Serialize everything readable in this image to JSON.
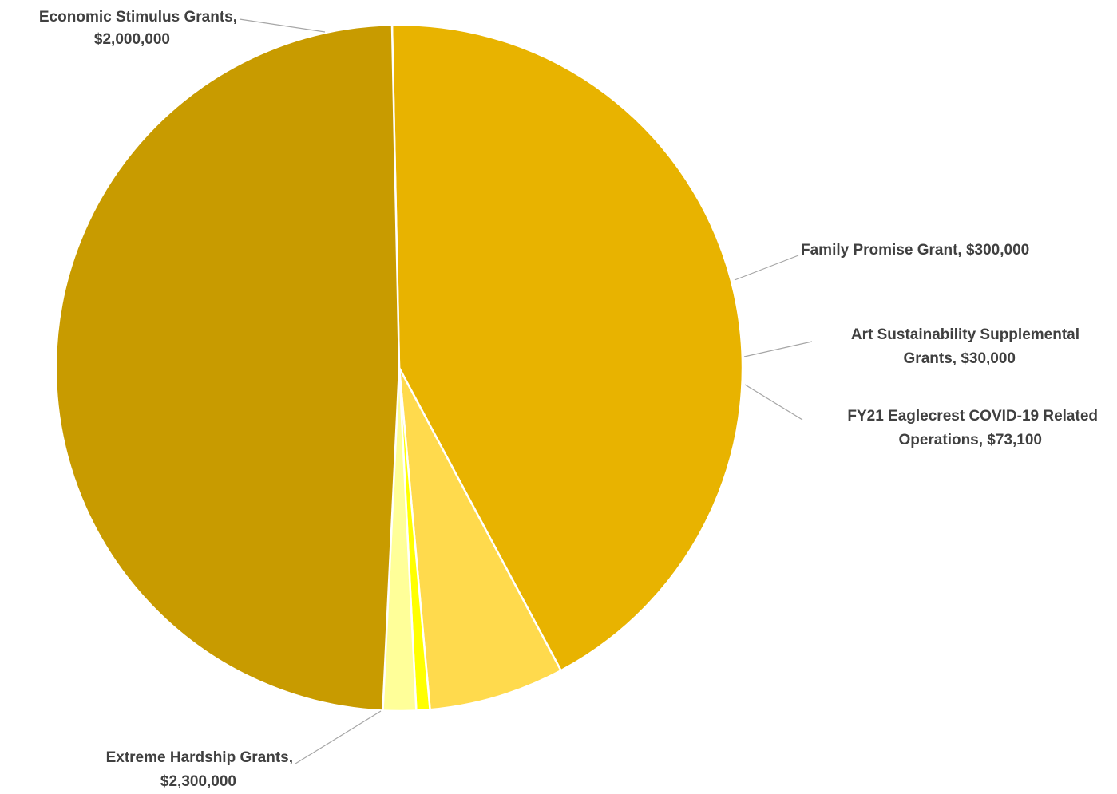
{
  "chart_data": {
    "type": "pie",
    "title": "",
    "slices": [
      {
        "name": "Economic Stimulus Grants",
        "value": 2000000,
        "label_lines": [
          "Economic Stimulus Grants,",
          "$2,000,000"
        ],
        "color": "#E8B300"
      },
      {
        "name": "Family Promise Grant",
        "value": 300000,
        "label_lines": [
          "Family Promise Grant,  $300,000"
        ],
        "color": "#FFDA4D"
      },
      {
        "name": "Art Sustainability Supplemental Grants",
        "value": 30000,
        "label_lines": [
          "Art Sustainability Supplemental",
          "Grants,  $30,000"
        ],
        "color": "#FFFF00"
      },
      {
        "name": "FY21 Eaglecrest COVID-19 Related Operations",
        "value": 73100,
        "label_lines": [
          "FY21 Eaglecrest COVID-19 Related",
          "Operations,  $73,100"
        ],
        "color": "#FFFF99"
      },
      {
        "name": "Extreme Hardship Grants",
        "value": 2300000,
        "label_lines": [
          "Extreme Hardship Grants,",
          "$2,300,000"
        ],
        "color": "#C89B00"
      }
    ],
    "legend": "none"
  }
}
